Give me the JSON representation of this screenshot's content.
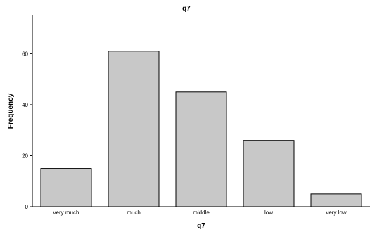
{
  "chart_data": {
    "type": "bar",
    "title": "q7",
    "xlabel": "q7",
    "ylabel": "Frequency",
    "categories": [
      "very much",
      "much",
      "middle",
      "low",
      "very low"
    ],
    "values": [
      15,
      61,
      45,
      26,
      5
    ],
    "ylim": [
      0,
      75
    ],
    "yticks": [
      0,
      20,
      40,
      60
    ],
    "grid": false,
    "bar_color": "#c8c8c8",
    "bar_edge_color": "#000000"
  }
}
